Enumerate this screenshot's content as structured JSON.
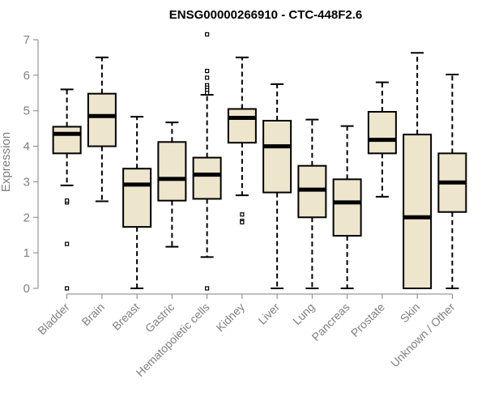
{
  "chart_data": {
    "type": "boxplot",
    "title": "ENSG00000266910 - CTC-448F2.6",
    "xlabel": "",
    "ylabel": "Expression",
    "ylim": [
      0,
      7
    ],
    "yticks": [
      0,
      1,
      2,
      3,
      4,
      5,
      6,
      7
    ],
    "grid": false,
    "box_fill": "#ede6cc",
    "box_stroke": "#000000",
    "axis_color": "#808080",
    "categories": [
      "Bladder",
      "Brain",
      "Breast",
      "Gastric",
      "Hematopoietic cells",
      "Kidney",
      "Liver",
      "Lung",
      "Pancreas",
      "Prostate",
      "Skin",
      "Unknown / Other"
    ],
    "boxes": [
      {
        "name": "Bladder",
        "whisker_low": 2.9,
        "q1": 3.8,
        "median": 4.35,
        "q3": 4.55,
        "whisker_high": 5.6,
        "outliers": [
          2.42,
          2.47,
          1.25,
          0.0
        ]
      },
      {
        "name": "Brain",
        "whisker_low": 2.45,
        "q1": 4.0,
        "median": 4.85,
        "q3": 5.48,
        "whisker_high": 6.5,
        "outliers": []
      },
      {
        "name": "Breast",
        "whisker_low": 0.0,
        "q1": 1.73,
        "median": 2.92,
        "q3": 3.37,
        "whisker_high": 4.83,
        "outliers": []
      },
      {
        "name": "Gastric",
        "whisker_low": 1.17,
        "q1": 2.47,
        "median": 3.08,
        "q3": 4.12,
        "whisker_high": 4.67,
        "outliers": []
      },
      {
        "name": "Hematopoietic cells",
        "whisker_low": 0.88,
        "q1": 2.52,
        "median": 3.2,
        "q3": 3.68,
        "whisker_high": 5.45,
        "outliers": [
          7.15,
          6.12,
          5.93,
          5.72,
          5.65,
          5.58,
          5.5,
          0.0
        ]
      },
      {
        "name": "Kidney",
        "whisker_low": 2.62,
        "q1": 4.1,
        "median": 4.8,
        "q3": 5.05,
        "whisker_high": 6.5,
        "outliers": [
          2.08,
          1.9,
          1.86
        ]
      },
      {
        "name": "Liver",
        "whisker_low": 0.0,
        "q1": 2.7,
        "median": 4.0,
        "q3": 4.72,
        "whisker_high": 5.75,
        "outliers": []
      },
      {
        "name": "Lung",
        "whisker_low": 0.0,
        "q1": 2.0,
        "median": 2.78,
        "q3": 3.45,
        "whisker_high": 4.75,
        "outliers": []
      },
      {
        "name": "Pancreas",
        "whisker_low": 0.0,
        "q1": 1.48,
        "median": 2.42,
        "q3": 3.07,
        "whisker_high": 4.57,
        "outliers": []
      },
      {
        "name": "Prostate",
        "whisker_low": 2.58,
        "q1": 3.8,
        "median": 4.18,
        "q3": 4.97,
        "whisker_high": 5.8,
        "outliers": []
      },
      {
        "name": "Skin",
        "whisker_low": 0.0,
        "q1": 0.0,
        "median": 2.0,
        "q3": 4.33,
        "whisker_high": 6.63,
        "outliers": []
      },
      {
        "name": "Unknown / Other",
        "whisker_low": 0.0,
        "q1": 2.15,
        "median": 2.98,
        "q3": 3.8,
        "whisker_high": 6.02,
        "outliers": []
      }
    ]
  }
}
